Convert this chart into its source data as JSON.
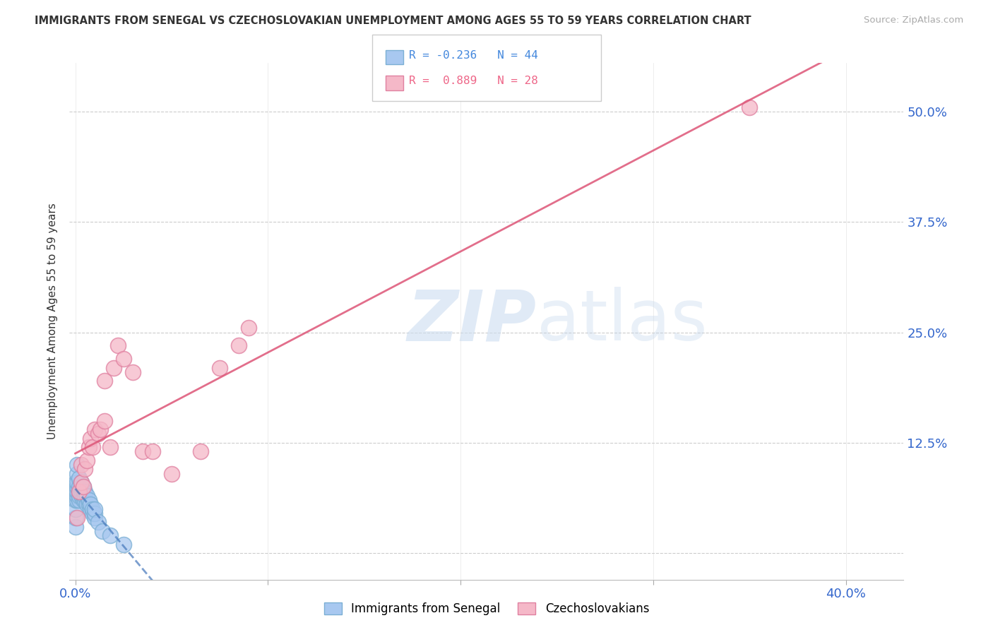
{
  "title": "IMMIGRANTS FROM SENEGAL VS CZECHOSLOVAKIAN UNEMPLOYMENT AMONG AGES 55 TO 59 YEARS CORRELATION CHART",
  "source": "Source: ZipAtlas.com",
  "ylabel": "Unemployment Among Ages 55 to 59 years",
  "xlim": [
    -0.003,
    0.43
  ],
  "ylim": [
    -0.03,
    0.555
  ],
  "x_ticks": [
    0.0,
    0.1,
    0.2,
    0.3,
    0.4
  ],
  "x_tick_labels": [
    "0.0%",
    "",
    "",
    "",
    "40.0%"
  ],
  "y_ticks": [
    0.0,
    0.125,
    0.25,
    0.375,
    0.5
  ],
  "y_tick_labels": [
    "",
    "12.5%",
    "25.0%",
    "37.5%",
    "50.0%"
  ],
  "background_color": "#ffffff",
  "grid_color": "#cccccc",
  "senegal_color": "#a8c8f0",
  "senegal_edge_color": "#7bafd4",
  "czech_color": "#f5b8c8",
  "czech_edge_color": "#e080a0",
  "senegal_line_color": "#4477bb",
  "czech_line_color": "#dd5577",
  "legend_senegal_color": "#4488dd",
  "legend_czech_color": "#ee6688",
  "senegal_x": [
    0.0,
    0.0,
    0.0,
    0.0,
    0.0,
    0.0,
    0.001,
    0.001,
    0.001,
    0.001,
    0.001,
    0.001,
    0.001,
    0.002,
    0.002,
    0.002,
    0.002,
    0.002,
    0.003,
    0.003,
    0.003,
    0.003,
    0.004,
    0.004,
    0.004,
    0.004,
    0.005,
    0.005,
    0.005,
    0.006,
    0.006,
    0.007,
    0.007,
    0.008,
    0.008,
    0.009,
    0.009,
    0.01,
    0.01,
    0.01,
    0.012,
    0.014,
    0.018,
    0.025
  ],
  "senegal_y": [
    0.03,
    0.04,
    0.05,
    0.06,
    0.07,
    0.08,
    0.06,
    0.065,
    0.07,
    0.075,
    0.08,
    0.09,
    0.1,
    0.06,
    0.065,
    0.07,
    0.075,
    0.085,
    0.065,
    0.07,
    0.075,
    0.08,
    0.06,
    0.065,
    0.07,
    0.075,
    0.06,
    0.065,
    0.07,
    0.055,
    0.065,
    0.055,
    0.06,
    0.05,
    0.055,
    0.045,
    0.05,
    0.04,
    0.045,
    0.05,
    0.035,
    0.025,
    0.02,
    0.01
  ],
  "czech_x": [
    0.001,
    0.002,
    0.003,
    0.003,
    0.004,
    0.005,
    0.006,
    0.007,
    0.008,
    0.009,
    0.01,
    0.012,
    0.013,
    0.015,
    0.015,
    0.018,
    0.02,
    0.022,
    0.025,
    0.03,
    0.035,
    0.04,
    0.05,
    0.065,
    0.075,
    0.085,
    0.09,
    0.35
  ],
  "czech_y": [
    0.04,
    0.07,
    0.08,
    0.1,
    0.075,
    0.095,
    0.105,
    0.12,
    0.13,
    0.12,
    0.14,
    0.135,
    0.14,
    0.15,
    0.195,
    0.12,
    0.21,
    0.235,
    0.22,
    0.205,
    0.115,
    0.115,
    0.09,
    0.115,
    0.21,
    0.235,
    0.255,
    0.505
  ],
  "senegal_line_x0": 0.0,
  "senegal_line_x1": 0.43,
  "czech_line_x0": 0.0,
  "czech_line_x1": 0.43
}
